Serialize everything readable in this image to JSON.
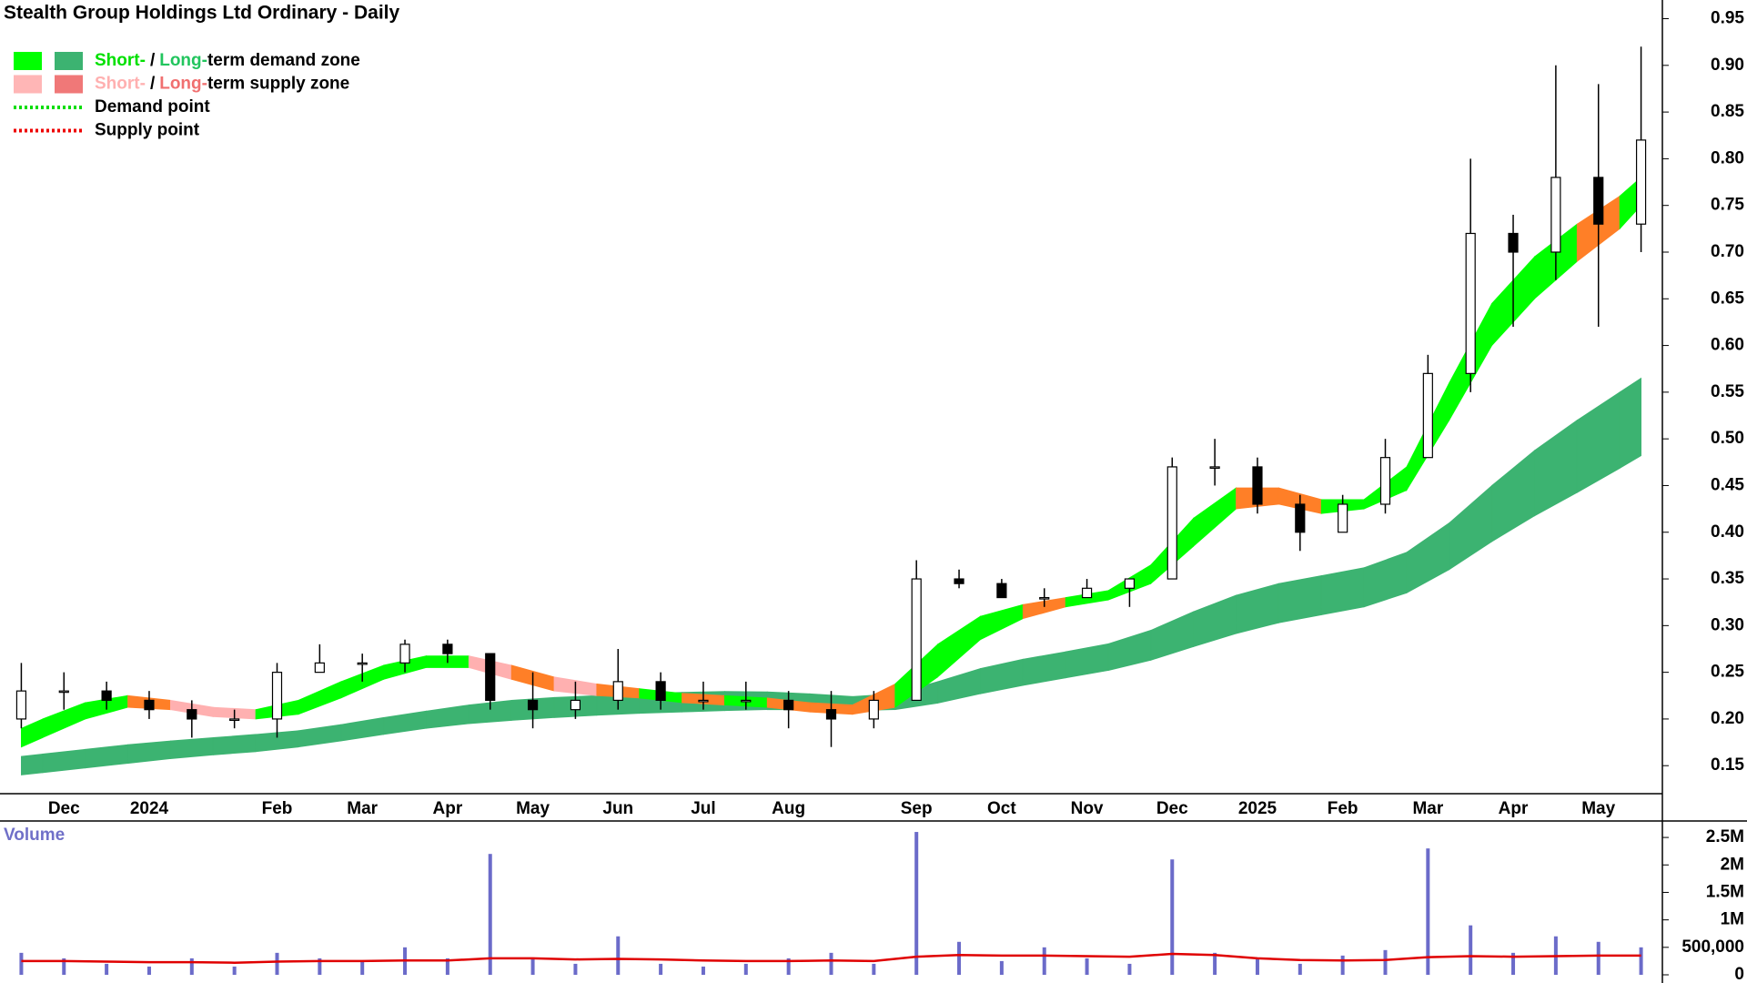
{
  "chart_data": [
    {
      "type": "candlestick",
      "title": "Stealth Group Holdings Ltd Ordinary - Daily",
      "legend": [
        {
          "parts": [
            "Short-",
            "/",
            "Long-",
            "term demand zone"
          ],
          "part_colors": [
            "#00e000",
            "#000000",
            "#22c55e",
            "#000000"
          ],
          "swatches": [
            "#00ff00",
            "#3cb371"
          ]
        },
        {
          "parts": [
            "Short-",
            "/",
            "Long-",
            "term supply zone"
          ],
          "part_colors": [
            "#ffb0b0",
            "#000000",
            "#f07070",
            "#000000"
          ],
          "swatches": [
            "#ffb6b6",
            "#f07878"
          ]
        },
        {
          "label": "Demand point",
          "line_color": "#00dd00"
        },
        {
          "label": "Supply point",
          "line_color": "#ee0000"
        }
      ],
      "categories": [
        null,
        "Dec",
        null,
        "2024",
        null,
        null,
        "Feb",
        null,
        "Mar",
        null,
        "Apr",
        null,
        "May",
        null,
        "Jun",
        null,
        "Jul",
        null,
        "Aug",
        null,
        null,
        "Sep",
        null,
        "Oct",
        null,
        "Nov",
        null,
        "Dec",
        null,
        "2025",
        null,
        "Feb",
        null,
        "Mar",
        null,
        "Apr",
        null,
        "May",
        null
      ],
      "open": [
        0.2,
        0.23,
        0.23,
        0.22,
        0.21,
        0.2,
        0.2,
        0.25,
        0.26,
        0.26,
        0.28,
        0.27,
        0.22,
        0.21,
        0.22,
        0.24,
        0.22,
        0.22,
        0.22,
        0.21,
        0.2,
        0.22,
        0.35,
        0.345,
        0.33,
        0.33,
        0.34,
        0.35,
        0.47,
        0.47,
        0.43,
        0.4,
        0.43,
        0.48,
        0.57,
        0.72,
        0.7,
        0.78,
        0.73
      ],
      "high": [
        0.26,
        0.25,
        0.24,
        0.23,
        0.22,
        0.21,
        0.26,
        0.28,
        0.27,
        0.285,
        0.285,
        0.27,
        0.25,
        0.24,
        0.275,
        0.25,
        0.24,
        0.24,
        0.23,
        0.23,
        0.23,
        0.37,
        0.36,
        0.35,
        0.34,
        0.35,
        0.35,
        0.48,
        0.5,
        0.48,
        0.44,
        0.44,
        0.5,
        0.59,
        0.8,
        0.74,
        0.9,
        0.88,
        0.92
      ],
      "low": [
        0.19,
        0.21,
        0.21,
        0.2,
        0.18,
        0.19,
        0.18,
        0.25,
        0.24,
        0.25,
        0.26,
        0.21,
        0.19,
        0.2,
        0.21,
        0.21,
        0.21,
        0.21,
        0.19,
        0.17,
        0.19,
        0.22,
        0.34,
        0.33,
        0.32,
        0.33,
        0.32,
        0.35,
        0.45,
        0.42,
        0.38,
        0.4,
        0.42,
        0.48,
        0.55,
        0.62,
        0.67,
        0.62,
        0.7
      ],
      "close": [
        0.23,
        0.23,
        0.22,
        0.21,
        0.2,
        0.2,
        0.25,
        0.26,
        0.26,
        0.28,
        0.27,
        0.22,
        0.21,
        0.22,
        0.24,
        0.22,
        0.22,
        0.22,
        0.21,
        0.2,
        0.22,
        0.35,
        0.345,
        0.33,
        0.33,
        0.34,
        0.35,
        0.47,
        0.47,
        0.43,
        0.4,
        0.43,
        0.48,
        0.57,
        0.72,
        0.7,
        0.78,
        0.73,
        0.82
      ],
      "short_zone": {
        "upper": [
          0.19,
          0.21,
          0.225,
          0.225,
          0.215,
          0.21,
          0.21,
          0.23,
          0.25,
          0.265,
          0.27,
          0.265,
          0.25,
          0.24,
          0.235,
          0.23,
          0.225,
          0.225,
          0.22,
          0.215,
          0.215,
          0.26,
          0.3,
          0.32,
          0.325,
          0.335,
          0.34,
          0.39,
          0.44,
          0.455,
          0.44,
          0.43,
          0.44,
          0.5,
          0.62,
          0.67,
          0.72,
          0.74,
          0.78
        ],
        "lower": [
          0.17,
          0.19,
          0.21,
          0.215,
          0.205,
          0.2,
          0.2,
          0.21,
          0.235,
          0.25,
          0.26,
          0.25,
          0.235,
          0.225,
          0.225,
          0.22,
          0.215,
          0.215,
          0.21,
          0.205,
          0.205,
          0.22,
          0.27,
          0.3,
          0.315,
          0.325,
          0.33,
          0.36,
          0.41,
          0.44,
          0.42,
          0.42,
          0.43,
          0.46,
          0.58,
          0.62,
          0.68,
          0.7,
          0.75
        ],
        "colors": [
          "#00ff00",
          "#00ff00",
          "#00ff00",
          "#ff7f27",
          "#ffb0b0",
          "#ffb0b0",
          "#00ff00",
          "#00ff00",
          "#00ff00",
          "#00ff00",
          "#00ff00",
          "#ffb0b0",
          "#ff7f27",
          "#ffb0b0",
          "#ff7f27",
          "#00ff00",
          "#ff7f27",
          "#00ff00",
          "#ff7f27",
          "#ff7f27",
          "#ff7f27",
          "#00ff00",
          "#00ff00",
          "#00ff00",
          "#ff7f27",
          "#00ff00",
          "#00ff00",
          "#00ff00",
          "#00ff00",
          "#ff7f27",
          "#ff7f27",
          "#00ff00",
          "#00ff00",
          "#00ff00",
          "#00ff00",
          "#00ff00",
          "#00ff00",
          "#ff7f27",
          "#00ff00"
        ]
      },
      "long_zone": {
        "upper": [
          0.16,
          0.165,
          0.17,
          0.175,
          0.178,
          0.182,
          0.185,
          0.19,
          0.198,
          0.205,
          0.212,
          0.218,
          0.222,
          0.224,
          0.226,
          0.228,
          0.229,
          0.23,
          0.228,
          0.226,
          0.222,
          0.232,
          0.248,
          0.26,
          0.268,
          0.276,
          0.285,
          0.305,
          0.325,
          0.34,
          0.35,
          0.357,
          0.367,
          0.39,
          0.43,
          0.47,
          0.505,
          0.535,
          0.565
        ],
        "lower": [
          0.14,
          0.145,
          0.15,
          0.155,
          0.16,
          0.163,
          0.167,
          0.173,
          0.18,
          0.187,
          0.193,
          0.197,
          0.2,
          0.203,
          0.205,
          0.207,
          0.208,
          0.21,
          0.21,
          0.21,
          0.208,
          0.212,
          0.222,
          0.232,
          0.24,
          0.248,
          0.256,
          0.27,
          0.285,
          0.298,
          0.308,
          0.315,
          0.325,
          0.345,
          0.375,
          0.405,
          0.43,
          0.455,
          0.482
        ],
        "color": "#3cb371"
      },
      "up_color": "#ffffff",
      "down_color": "#000000",
      "ylim": [
        0.12,
        0.97
      ],
      "yticks": [
        0.95,
        {
          "value": 0.9,
          "label": "0.90"
        },
        0.85,
        {
          "value": 0.8,
          "label": "0.80"
        },
        0.75,
        {
          "value": 0.7,
          "label": "0.70"
        },
        0.65,
        {
          "value": 0.6,
          "label": "0.60"
        },
        0.55,
        {
          "value": 0.5,
          "label": "0.50"
        },
        0.45,
        {
          "value": 0.4,
          "label": "0.40"
        },
        0.35,
        {
          "value": 0.3,
          "label": "0.30"
        },
        0.25,
        {
          "value": 0.2,
          "label": "0.20"
        },
        0.15
      ]
    },
    {
      "type": "bar",
      "title": "Volume",
      "values": [
        400000,
        300000,
        200000,
        150000,
        300000,
        150000,
        400000,
        300000,
        250000,
        500000,
        300000,
        2200000,
        300000,
        200000,
        700000,
        200000,
        150000,
        200000,
        300000,
        400000,
        200000,
        2600000,
        600000,
        250000,
        500000,
        300000,
        200000,
        2100000,
        400000,
        300000,
        200000,
        350000,
        450000,
        2300000,
        900000,
        400000,
        700000,
        600000,
        500000
      ],
      "color": "#6b6bc9",
      "average": {
        "values": [
          250000,
          250000,
          240000,
          230000,
          230000,
          220000,
          240000,
          250000,
          250000,
          260000,
          260000,
          300000,
          300000,
          280000,
          290000,
          280000,
          260000,
          250000,
          250000,
          260000,
          250000,
          330000,
          360000,
          350000,
          350000,
          340000,
          330000,
          380000,
          360000,
          300000,
          270000,
          260000,
          270000,
          320000,
          340000,
          330000,
          340000,
          350000,
          350000
        ],
        "color": "#e00000"
      },
      "ylim": [
        0,
        2750000
      ],
      "yticks": [
        0,
        {
          "value": 500000,
          "label": "500,000"
        },
        {
          "value": 1000000,
          "label": "1M"
        },
        {
          "value": 1500000,
          "label": "1.5M"
        },
        {
          "value": 2000000,
          "label": "2M"
        },
        {
          "value": 2500000,
          "label": "2.5M"
        }
      ]
    }
  ]
}
